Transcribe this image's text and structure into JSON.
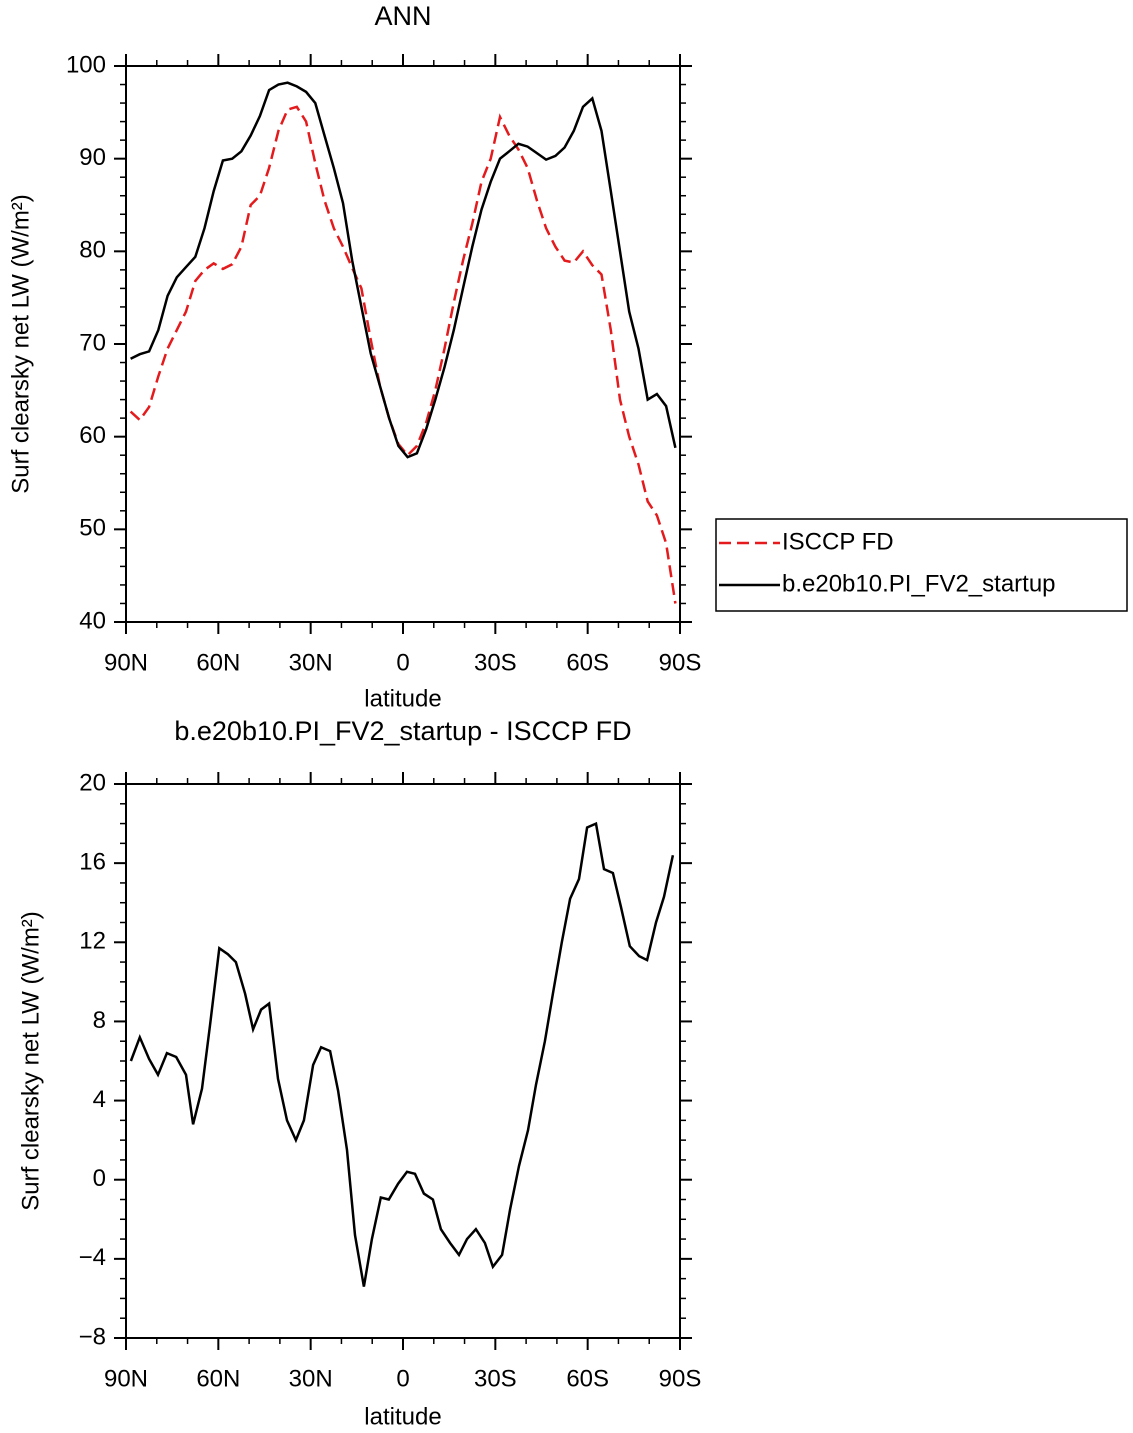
{
  "chart_data": [
    {
      "type": "line",
      "title": "ANN",
      "xlabel": "latitude",
      "ylabel": "Surf clearsky net LW (W/m²)",
      "x": [
        88.5,
        85.5,
        82.5,
        79.5,
        76.5,
        73.5,
        70.5,
        67.5,
        64.5,
        61.5,
        58.5,
        55.5,
        52.5,
        49.5,
        46.5,
        43.5,
        40.5,
        37.5,
        34.5,
        31.5,
        28.5,
        25.5,
        22.5,
        19.5,
        16.5,
        13.5,
        10.5,
        7.5,
        4.5,
        1.5,
        -1.5,
        -4.5,
        -7.5,
        -10.5,
        -13.5,
        -16.5,
        -19.5,
        -22.5,
        -25.5,
        -28.5,
        -31.5,
        -34.5,
        -37.5,
        -40.5,
        -43.5,
        -46.5,
        -49.5,
        -52.5,
        -55.5,
        -58.5,
        -61.5,
        -64.5,
        -67.5,
        -70.5,
        -73.5,
        -76.5,
        -79.5,
        -82.5,
        -85.5,
        -88.5
      ],
      "series": [
        {
          "name": "ISCCP FD",
          "color": "#e41a1c",
          "style": "dashed",
          "values": [
            62.7,
            61.8,
            63.2,
            66.5,
            69.5,
            71.5,
            73.5,
            76.8,
            78.0,
            78.7,
            78.1,
            78.6,
            80.5,
            85.0,
            86.0,
            89.0,
            93.0,
            95.3,
            95.6,
            94.0,
            89.5,
            85.5,
            82.5,
            80.5,
            78.2,
            76.0,
            70.5,
            65.5,
            62.0,
            59.2,
            58.0,
            59.0,
            61.5,
            65.0,
            69.5,
            74.5,
            79.0,
            83.0,
            87.5,
            90.0,
            94.5,
            92.5,
            91.0,
            89.0,
            85.5,
            82.5,
            80.5,
            79.0,
            78.8,
            80.0,
            78.5,
            77.5,
            71.5,
            64.0,
            60.0,
            57.0,
            53.0,
            51.5,
            48.5,
            42.0
          ]
        },
        {
          "name": "b.e20b10.PI_FV2_startup",
          "color": "#000000",
          "style": "solid",
          "values": [
            68.4,
            68.9,
            69.2,
            71.5,
            75.2,
            77.2,
            78.3,
            79.4,
            82.5,
            86.5,
            89.8,
            90.0,
            90.8,
            92.5,
            94.6,
            97.4,
            98.0,
            98.2,
            97.8,
            97.2,
            96.0,
            92.5,
            89.0,
            85.2,
            79.0,
            74.0,
            69.0,
            65.5,
            62.0,
            59.0,
            57.8,
            58.2,
            60.8,
            64.0,
            67.5,
            71.5,
            76.0,
            80.5,
            84.5,
            87.5,
            90.0,
            90.8,
            91.6,
            91.3,
            90.6,
            89.9,
            90.3,
            91.2,
            93.0,
            95.6,
            96.5,
            93.0,
            86.5,
            80.0,
            73.5,
            69.5,
            64.0,
            64.6,
            63.3,
            58.8
          ]
        }
      ],
      "xlim": [
        90,
        -90
      ],
      "xticks": [
        {
          "value": 90,
          "label": "90N"
        },
        {
          "value": 60,
          "label": "60N"
        },
        {
          "value": 30,
          "label": "30N"
        },
        0,
        {
          "value": -30,
          "label": "30S"
        },
        {
          "value": -60,
          "label": "60S"
        },
        {
          "value": -90,
          "label": "90S"
        }
      ],
      "xminorticks": [
        80,
        70,
        50,
        40,
        20,
        10,
        -10,
        -20,
        -40,
        -50,
        -70,
        -80
      ],
      "ylim": [
        40,
        100
      ],
      "yticks": [
        40,
        50,
        60,
        70,
        80,
        90,
        100
      ],
      "yminorticks": [
        42,
        44,
        46,
        48,
        52,
        54,
        56,
        58,
        62,
        64,
        66,
        68,
        72,
        74,
        76,
        78,
        82,
        84,
        86,
        88,
        92,
        94,
        96,
        98
      ],
      "legend": "outside-right"
    },
    {
      "type": "line",
      "title": "b.e20b10.PI_FV2_startup - ISCCP FD",
      "xlabel": "latitude",
      "ylabel": "Surf clearsky net LW (W/m²)",
      "x": [
        88.4,
        85.5,
        82.5,
        79.6,
        76.7,
        73.7,
        70.5,
        68.2,
        65.3,
        62.7,
        59.7,
        56.9,
        54.3,
        51.3,
        48.7,
        46.1,
        43.5,
        40.6,
        37.7,
        34.8,
        32.2,
        29.2,
        26.6,
        23.7,
        21.1,
        18.2,
        15.6,
        12.7,
        10.1,
        7.2,
        4.6,
        1.6,
        -1.3,
        -3.9,
        -6.8,
        -9.7,
        -12.3,
        -15.3,
        -18.2,
        -20.8,
        -23.7,
        -26.6,
        -29.2,
        -32.2,
        -34.8,
        -37.7,
        -40.6,
        -43.2,
        -46.1,
        -48.7,
        -51.6,
        -54.3,
        -57.2,
        -59.8,
        -62.7,
        -65.3,
        -68.2,
        -70.8,
        -73.7,
        -76.7,
        -79.3,
        -82.2,
        -84.8,
        -87.7
      ],
      "series": [
        {
          "name": "b.e20b10.PI_FV2_startup - ISCCP FD",
          "color": "#000000",
          "style": "solid",
          "values": [
            6.0,
            7.2,
            6.1,
            5.3,
            6.4,
            6.2,
            5.3,
            2.8,
            4.6,
            7.8,
            11.7,
            11.4,
            11.0,
            9.4,
            7.6,
            8.6,
            8.9,
            5.1,
            3.0,
            2.0,
            3.0,
            5.8,
            6.7,
            6.5,
            4.5,
            1.5,
            -2.8,
            -5.4,
            -3.0,
            -0.9,
            -1.0,
            -0.2,
            0.4,
            0.3,
            -0.7,
            -1.0,
            -2.5,
            -3.2,
            -3.8,
            -3.0,
            -2.5,
            -3.2,
            -4.4,
            -3.8,
            -1.5,
            0.7,
            2.5,
            4.8,
            7.0,
            9.4,
            12.0,
            14.2,
            15.2,
            17.8,
            18.0,
            15.7,
            15.5,
            13.8,
            11.8,
            11.3,
            11.1,
            13.0,
            14.3,
            16.4
          ]
        }
      ],
      "xlim": [
        90,
        -90
      ],
      "xticks": [
        {
          "value": 90,
          "label": "90N"
        },
        {
          "value": 60,
          "label": "60N"
        },
        {
          "value": 30,
          "label": "30N"
        },
        0,
        {
          "value": -30,
          "label": "30S"
        },
        {
          "value": -60,
          "label": "60S"
        },
        {
          "value": -90,
          "label": "90S"
        }
      ],
      "xminorticks": [
        80,
        70,
        50,
        40,
        20,
        10,
        -10,
        -20,
        -40,
        -50,
        -70,
        -80
      ],
      "ylim": [
        -8,
        20
      ],
      "yticks": [
        {
          "value": -8,
          "label": "−8"
        },
        {
          "value": -4,
          "label": "−4"
        },
        0,
        4,
        8,
        12,
        16,
        20
      ],
      "yminorticks": [
        -7,
        -6,
        -5,
        -3,
        -2,
        -1,
        1,
        2,
        3,
        5,
        6,
        7,
        9,
        10,
        11,
        13,
        14,
        15,
        17,
        18,
        19
      ],
      "legend": "none"
    }
  ]
}
